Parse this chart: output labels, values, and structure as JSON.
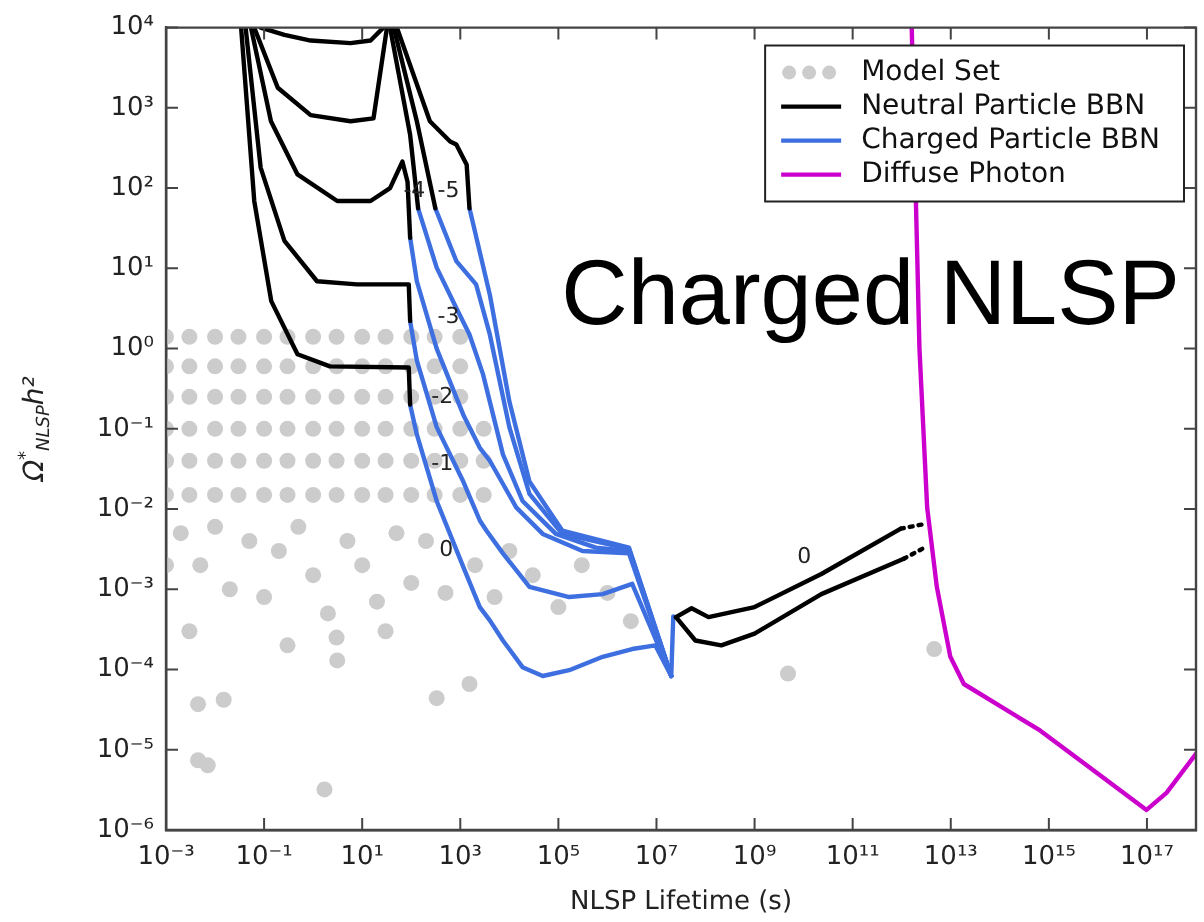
{
  "chart_data": {
    "type": "line",
    "xlabel": "NLSP Lifetime (s)",
    "ylabel": "Ω$^{*}$$_{NLSP}$h²",
    "log": "xy",
    "grid": false,
    "legend": "top right",
    "xlim": [
      0.001,
      1e+18
    ],
    "ylim": [
      1e-06,
      10000
    ],
    "xticks": [
      {
        "value": 0.001,
        "label": "10⁻³"
      },
      {
        "value": 0.1,
        "label": "10⁻¹"
      },
      {
        "value": 10,
        "label": "10¹"
      },
      {
        "value": 1000,
        "label": "10³"
      },
      {
        "value": 100000,
        "label": "10⁵"
      },
      {
        "value": 10000000.0,
        "label": "10⁷"
      },
      {
        "value": 1000000000.0,
        "label": "10⁹"
      },
      {
        "value": 100000000000.0,
        "label": "10¹¹"
      },
      {
        "value": 10000000000000.0,
        "label": "10¹³"
      },
      {
        "value": 1000000000000000.0,
        "label": "10¹⁵"
      },
      {
        "value": 1e+17,
        "label": "10¹⁷"
      }
    ],
    "yticks": [
      {
        "value": 1e-06,
        "label": "10⁻⁶"
      },
      {
        "value": 1e-05,
        "label": "10⁻⁵"
      },
      {
        "value": 0.0001,
        "label": "10⁻⁴"
      },
      {
        "value": 0.001,
        "label": "10⁻³"
      },
      {
        "value": 0.01,
        "label": "10⁻²"
      },
      {
        "value": 0.1,
        "label": "10⁻¹"
      },
      {
        "value": 1,
        "label": "10⁰"
      },
      {
        "value": 10,
        "label": "10¹"
      },
      {
        "value": 100,
        "label": "10²"
      },
      {
        "value": 1000,
        "label": "10³"
      },
      {
        "value": 10000,
        "label": "10⁴"
      }
    ],
    "annotations": [
      "Charged NLSP",
      {
        "text": "-5",
        "x": 1540,
        "y": 56
      },
      {
        "text": "-4",
        "x": 310,
        "y": 56
      },
      {
        "text": "-3",
        "x": 1540,
        "y": 1.5
      },
      {
        "text": "-2",
        "x": 1150,
        "y": 0.15
      },
      {
        "text": "-1",
        "x": 1150,
        "y": 0.022
      },
      {
        "text": "0",
        "x": 1150,
        "y": 0.0019
      },
      {
        "text": "0",
        "x": 23000000000.0,
        "y": 0.00155
      }
    ],
    "series": [
      {
        "name": "Model Set",
        "type": "scatter",
        "marker": "circle",
        "color": "#cccccc",
        "x": [
          0.001,
          0.001,
          0.001,
          0.001,
          0.001,
          0.001,
          0.003,
          0.003,
          0.003,
          0.003,
          0.003,
          0.003,
          0.01,
          0.01,
          0.01,
          0.01,
          0.01,
          0.01,
          0.03,
          0.03,
          0.03,
          0.03,
          0.03,
          0.03,
          0.1,
          0.1,
          0.1,
          0.1,
          0.1,
          0.1,
          0.3,
          0.3,
          0.3,
          0.3,
          0.3,
          0.3,
          1,
          1,
          1,
          1,
          1,
          1,
          3,
          3,
          3,
          3,
          3,
          3,
          10,
          10,
          10,
          10,
          10,
          10,
          30,
          30,
          30,
          30,
          30,
          30,
          100,
          100,
          100,
          100,
          100,
          100,
          300,
          300,
          300,
          300,
          300,
          300,
          1000,
          1000,
          1000,
          1000,
          1000,
          1000,
          3000,
          3000,
          3000,
          0.002,
          0.005,
          0.01,
          0.02,
          0.05,
          0.1,
          0.2,
          0.5,
          1,
          2,
          5,
          10,
          20,
          50,
          100,
          200,
          500,
          2000,
          5000,
          10000,
          30000,
          100000,
          300000,
          1000000,
          3000000,
          0.003,
          0.3,
          3,
          30,
          0.001,
          0.0045,
          0.0071,
          1.7,
          0.0045,
          0.015,
          3.1,
          330,
          1540,
          4800000000.0,
          4600000000000.0
        ],
        "values": [
          0.015,
          0.04,
          0.1,
          0.25,
          0.6,
          1.4,
          0.015,
          0.04,
          0.1,
          0.25,
          0.6,
          1.4,
          0.015,
          0.04,
          0.1,
          0.25,
          0.6,
          1.4,
          0.015,
          0.04,
          0.1,
          0.25,
          0.6,
          1.4,
          0.015,
          0.04,
          0.1,
          0.25,
          0.6,
          1.4,
          0.015,
          0.04,
          0.1,
          0.25,
          0.6,
          1.4,
          0.015,
          0.04,
          0.1,
          0.25,
          0.6,
          1.4,
          0.015,
          0.04,
          0.1,
          0.25,
          0.6,
          1.4,
          0.015,
          0.04,
          0.1,
          0.25,
          0.6,
          1.4,
          0.015,
          0.04,
          0.1,
          0.25,
          0.6,
          1.4,
          0.015,
          0.04,
          0.1,
          0.25,
          0.6,
          1.4,
          0.015,
          0.04,
          0.1,
          0.25,
          0.6,
          1.4,
          0.015,
          0.04,
          0.1,
          0.25,
          0.6,
          1.4,
          0.015,
          0.04,
          0.1,
          0.005,
          0.002,
          0.006,
          0.001,
          0.004,
          0.0008,
          0.003,
          0.006,
          0.0015,
          0.0005,
          0.004,
          0.002,
          0.0007,
          0.005,
          0.0012,
          0.004,
          0.0009,
          0.002,
          0.0008,
          0.003,
          0.0015,
          0.0006,
          0.002,
          0.0009,
          0.0004,
          0.0003,
          0.0002,
          0.00025,
          0.0003,
          0.002,
          7.4e-06,
          6.4e-06,
          3.2e-06,
          3.7e-05,
          4.2e-05,
          0.00013,
          4.4e-05,
          6.6e-05,
          8.9e-05,
          0.00018
        ]
      },
      {
        "name": "Neutral Particle BBN",
        "marker": "none",
        "color": "#000000",
        "x": [
          0.034,
          0.063,
          0.14,
          0.48,
          2.2,
          89,
          95
        ],
        "values": [
          10000,
          69,
          3.9,
          0.85,
          0.6,
          0.58,
          0.2
        ]
      },
      {
        "marker": "none",
        "color": "#000000",
        "x": [
          0.042,
          0.085,
          0.26,
          1.2,
          7.8,
          89,
          95
        ],
        "values": [
          10000,
          180,
          22,
          6.9,
          6.3,
          6.3,
          2.2
        ]
      },
      {
        "marker": "none",
        "color": "#000000",
        "x": [
          0.054,
          0.138,
          0.48,
          3.1,
          14.8,
          37,
          66,
          84,
          95
        ],
        "values": [
          10000,
          680,
          148,
          69,
          69,
          100,
          214,
          120,
          24
        ]
      },
      {
        "marker": "none",
        "color": "#000000",
        "x": [
          0.063,
          0.19,
          0.89,
          5.8,
          17,
          32
        ],
        "values": [
          10000,
          1780,
          810,
          680,
          740,
          10000
        ]
      },
      {
        "marker": "none",
        "color": "#000000",
        "x": [
          0.085,
          0.26,
          0.89,
          5.8,
          14.8,
          27
        ],
        "values": [
          10000,
          8100,
          6900,
          6400,
          6900,
          10000
        ]
      },
      {
        "marker": "none",
        "color": "#000000",
        "x": [
          37,
          95,
          138
        ],
        "values": [
          10000,
          460,
          56
        ]
      },
      {
        "marker": "none",
        "color": "#000000",
        "x": [
          44,
          130,
          310
        ],
        "values": [
          10000,
          680,
          56
        ]
      },
      {
        "marker": "none",
        "color": "#000000",
        "x": [
          51,
          240,
          620,
          830,
          1350,
          1540
        ],
        "values": [
          10000,
          680,
          380,
          350,
          195,
          56
        ]
      },
      {
        "marker": "none",
        "color": "#000000",
        "x": [
          25000000.0,
          52000000.0,
          115000000.0,
          1000000000.0,
          23000000000.0,
          960000000000.0
        ],
        "values": [
          0.00045,
          0.00058,
          0.00045,
          0.0006,
          0.00155,
          0.0057
        ]
      },
      {
        "marker": "none",
        "color": "#000000",
        "x": [
          25000000.0,
          62000000.0,
          210000000.0,
          1000000000.0,
          23000000000.0,
          1100000000000.0
        ],
        "values": [
          0.00045,
          0.00023,
          0.0002,
          0.00028,
          0.00087,
          0.0024
        ]
      },
      {
        "marker": "none",
        "line_style": "dotted",
        "color": "#000000",
        "x": [
          960000000000.0,
          2900000000000.0
        ],
        "values": [
          0.0057,
          0.0065
        ]
      },
      {
        "marker": "none",
        "line_style": "dotted",
        "color": "#000000",
        "x": [
          1100000000000.0,
          2900000000000.0
        ],
        "values": [
          0.0024,
          0.0033
        ]
      },
      {
        "name": "Charged Particle BBN",
        "marker": "none",
        "color": "#3d6fe0",
        "x": [
          95,
          130,
          330,
          1150,
          2500,
          4000,
          7400,
          18600,
          48000,
          166000,
          800000,
          3200000.0,
          9500000.0,
          20000000.0,
          22000000.0
        ],
        "values": [
          0.2,
          0.085,
          0.0126,
          0.0019,
          0.0006,
          0.00041,
          0.00023,
          0.000107,
          8.3e-05,
          9.8e-05,
          0.000144,
          0.00018,
          0.0002,
          8.3e-05,
          0.00046
        ]
      },
      {
        "marker": "none",
        "color": "#3d6fe0",
        "x": [
          95,
          130,
          330,
          1150,
          2500,
          3400,
          7400,
          25700,
          166000,
          800000,
          3200000.0,
          20000000.0
        ],
        "values": [
          2.2,
          0.71,
          0.105,
          0.022,
          0.0072,
          0.0054,
          0.0028,
          0.00107,
          0.0008,
          0.00087,
          0.00117,
          8.3e-05
        ]
      },
      {
        "marker": "none",
        "color": "#3d6fe0",
        "x": [
          95,
          130,
          330,
          1150,
          2500,
          4000,
          13800,
          48000,
          310000,
          2750000.0,
          20000000.0
        ],
        "values": [
          24,
          6.9,
          1.0,
          0.15,
          0.058,
          0.04,
          0.0105,
          0.0049,
          0.003,
          0.0028,
          8.3e-05
        ]
      },
      {
        "marker": "none",
        "color": "#3d6fe0",
        "x": [
          138,
          330,
          830,
          1540,
          2900,
          7400,
          18600,
          89000,
          580000,
          2750000.0,
          20000000.0
        ],
        "values": [
          56,
          10.2,
          3.2,
          1.5,
          0.48,
          0.048,
          0.0126,
          0.0049,
          0.0033,
          0.003,
          8.3e-05
        ]
      },
      {
        "marker": "none",
        "color": "#3d6fe0",
        "x": [
          310,
          830,
          2100,
          4000,
          10000,
          25700,
          120000,
          2750000.0,
          20000000.0
        ],
        "values": [
          56,
          12.3,
          6.3,
          1.5,
          0.105,
          0.0155,
          0.0049,
          0.0032,
          8.3e-05
        ]
      },
      {
        "marker": "none",
        "color": "#3d6fe0",
        "x": [
          1540,
          4000,
          10000,
          25700,
          120000,
          2750000.0,
          20000000.0
        ],
        "values": [
          56,
          4.7,
          0.22,
          0.022,
          0.0054,
          0.0033,
          8.3e-05
        ]
      },
      {
        "name": "Diffuse Photon",
        "marker": "none",
        "color": "#cc00cc",
        "x": [
          1600000000000.0,
          2300000000000.0,
          3300000000000.0,
          5200000000000.0,
          9800000000000.0,
          18500000000000.0,
          660000000000000.0,
          9.8e+16,
          2.5e+17,
          1e+18
        ],
        "values": [
          10000,
          1.0,
          0.0105,
          0.00107,
          0.000144,
          6.6e-05,
          1.74e-05,
          1.78e-06,
          2.9e-06,
          8.9e-06
        ]
      }
    ]
  }
}
